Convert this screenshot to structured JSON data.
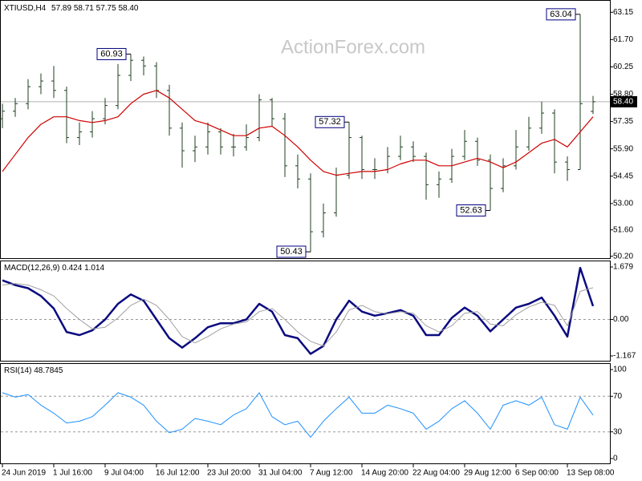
{
  "chart_data": [
    {
      "type": "ohlc",
      "symbol": "XTIUSD,H4",
      "watermark": "ActionForex.com",
      "last_bar_labels": {
        "open": "57.89",
        "high": "58.71",
        "low": "57.75",
        "close": "58.40"
      },
      "categories": [
        "24 Jun 2019",
        null,
        null,
        null,
        "1 Jul 16:00",
        null,
        null,
        null,
        "9 Jul 04:00",
        null,
        null,
        null,
        "16 Jul 12:00",
        null,
        null,
        null,
        "23 Jul 20:00",
        null,
        null,
        null,
        "31 Jul 04:00",
        null,
        null,
        null,
        "7 Aug 12:00",
        null,
        null,
        null,
        "14 Aug 20:00",
        null,
        null,
        null,
        "22 Aug 04:00",
        null,
        null,
        null,
        "29 Aug 12:00",
        null,
        null,
        null,
        "6 Sep 00:00",
        null,
        null,
        null,
        "13 Sep 08:00",
        null,
        null
      ],
      "open": [
        57.5,
        57.9,
        58.3,
        59.2,
        59.5,
        59.0,
        56.5,
        56.8,
        57.5,
        58.2,
        59.8,
        60.6,
        60.3,
        59.0,
        57.0,
        55.8,
        56.0,
        56.8,
        56.0,
        56.0,
        56.5,
        58.5,
        57.5,
        55.0,
        54.3,
        51.5,
        52.5,
        54.5,
        56.5,
        54.8,
        54.8,
        55.5,
        56.0,
        55.5,
        54.0,
        54.3,
        55.5,
        56.3,
        55.3,
        53.8,
        55.0,
        56.0,
        57.0,
        57.8,
        55.2,
        54.8,
        57.89
      ],
      "high": [
        58.3,
        58.6,
        59.6,
        59.9,
        60.3,
        59.2,
        57.3,
        57.9,
        58.6,
        60.4,
        60.93,
        60.8,
        60.5,
        59.3,
        57.3,
        56.6,
        57.3,
        57.0,
        56.7,
        57.2,
        58.8,
        58.6,
        57.8,
        55.6,
        54.6,
        53.0,
        54.9,
        57.32,
        56.6,
        55.4,
        56.0,
        56.6,
        56.3,
        55.7,
        54.7,
        55.9,
        56.9,
        56.5,
        55.6,
        55.4,
        56.9,
        57.6,
        58.4,
        58.0,
        55.5,
        63.04,
        58.71
      ],
      "low": [
        57.0,
        57.6,
        58.0,
        58.8,
        58.6,
        56.2,
        56.1,
        56.5,
        57.2,
        58.0,
        59.5,
        59.8,
        58.6,
        56.6,
        54.9,
        55.2,
        55.6,
        55.6,
        55.5,
        55.8,
        56.3,
        57.1,
        54.4,
        53.8,
        50.43,
        51.2,
        52.3,
        54.3,
        54.3,
        54.3,
        54.6,
        55.3,
        55.2,
        53.2,
        53.3,
        54.1,
        55.3,
        55.0,
        52.63,
        53.6,
        54.8,
        55.8,
        56.7,
        54.6,
        54.2,
        54.8,
        57.75
      ],
      "close": [
        57.9,
        58.3,
        59.2,
        59.5,
        59.0,
        56.5,
        56.8,
        57.5,
        58.2,
        59.8,
        60.6,
        60.3,
        59.0,
        57.0,
        55.8,
        56.0,
        56.8,
        56.0,
        56.0,
        56.5,
        58.5,
        57.5,
        55.0,
        54.3,
        51.5,
        52.5,
        54.5,
        56.5,
        54.8,
        54.8,
        55.5,
        56.0,
        55.5,
        54.0,
        54.3,
        55.5,
        56.3,
        55.3,
        53.8,
        55.0,
        56.0,
        57.0,
        57.8,
        55.2,
        54.8,
        58.3,
        58.4
      ],
      "color": "#1f3f1f",
      "series": [
        {
          "color": "#d00000",
          "values": [
            54.7,
            55.6,
            56.5,
            57.2,
            57.6,
            57.6,
            57.4,
            57.3,
            57.4,
            57.6,
            58.3,
            58.8,
            59.0,
            58.6,
            58.0,
            57.4,
            57.2,
            56.9,
            56.6,
            56.6,
            57.0,
            57.1,
            56.6,
            56.0,
            55.3,
            54.7,
            54.5,
            54.6,
            54.7,
            54.7,
            54.8,
            55.1,
            55.3,
            55.3,
            55.0,
            55.0,
            55.2,
            55.4,
            55.2,
            54.9,
            55.2,
            55.7,
            56.2,
            56.4,
            56.0,
            56.8,
            57.6
          ]
        }
      ],
      "annotations": [
        60.93,
        57.32,
        50.43,
        52.63,
        63.04
      ],
      "ylim": [
        50.1,
        63.8
      ],
      "yticks": [
        63.15,
        {
          "value": 61.7,
          "label": "61.70"
        },
        60.25,
        {
          "value": 58.8,
          "label": "58.80"
        },
        57.35,
        {
          "value": 55.9,
          "label": "55.90"
        },
        54.45,
        {
          "value": 53.0,
          "label": "53.00"
        },
        {
          "value": 51.6,
          "label": "51.60"
        },
        {
          "value": 50.2,
          "label": "50.20"
        }
      ],
      "grid": false
    },
    {
      "type": "line",
      "title": "MACD(12,26,9)",
      "series": [
        {
          "color": "#0a0a80",
          "width": 2.5,
          "values": [
            1.25,
            1.1,
            1.0,
            0.75,
            0.35,
            -0.4,
            -0.5,
            -0.35,
            0,
            0.5,
            0.8,
            0.6,
            0,
            -0.6,
            -0.9,
            -0.6,
            -0.25,
            -0.12,
            -0.12,
            0,
            0.5,
            0.25,
            -0.5,
            -0.6,
            -1.1,
            -0.85,
            0,
            0.6,
            0.25,
            0.12,
            0.2,
            0.3,
            0.12,
            -0.5,
            -0.5,
            0.05,
            0.38,
            0.12,
            -0.38,
            0,
            0.38,
            0.5,
            0.7,
            0.12,
            -0.55,
            1.65,
            0.424
          ]
        },
        {
          "color": "#a0a0a0",
          "width": 1,
          "values": [
            1.1,
            1.15,
            1.1,
            0.95,
            0.75,
            0.35,
            0.0,
            -0.3,
            -0.25,
            0.05,
            0.45,
            0.65,
            0.45,
            0.0,
            -0.55,
            -0.75,
            -0.55,
            -0.3,
            -0.15,
            -0.08,
            0.25,
            0.35,
            0.0,
            -0.4,
            -0.7,
            -0.85,
            -0.4,
            0.3,
            0.45,
            0.25,
            0.18,
            0.25,
            0.2,
            -0.2,
            -0.4,
            -0.2,
            0.2,
            0.25,
            -0.15,
            -0.2,
            0.15,
            0.4,
            0.55,
            0.45,
            -0.2,
            0.9,
            1.014
          ]
        }
      ],
      "ylim": [
        -1.167,
        1.679
      ],
      "yticks": [
        1.679,
        {
          "value": 0,
          "label": "0.00"
        },
        -1.167
      ],
      "grid": true
    },
    {
      "type": "line",
      "title": "RSI(14)",
      "series": [
        {
          "color": "#1e90ff",
          "width": 1,
          "values": [
            74,
            69,
            72,
            60,
            51,
            40,
            42,
            47,
            60,
            74,
            69,
            60,
            42,
            29,
            33,
            45,
            42,
            38,
            49,
            56,
            74,
            47,
            38,
            42,
            24,
            42,
            56,
            69,
            51,
            51,
            60,
            56,
            51,
            33,
            42,
            56,
            65,
            51,
            33,
            60,
            65,
            60,
            69,
            38,
            33,
            69,
            48.7845
          ]
        }
      ],
      "ylim": [
        0,
        100
      ],
      "yticks": [
        100,
        70,
        30,
        0
      ],
      "grid": true
    }
  ]
}
